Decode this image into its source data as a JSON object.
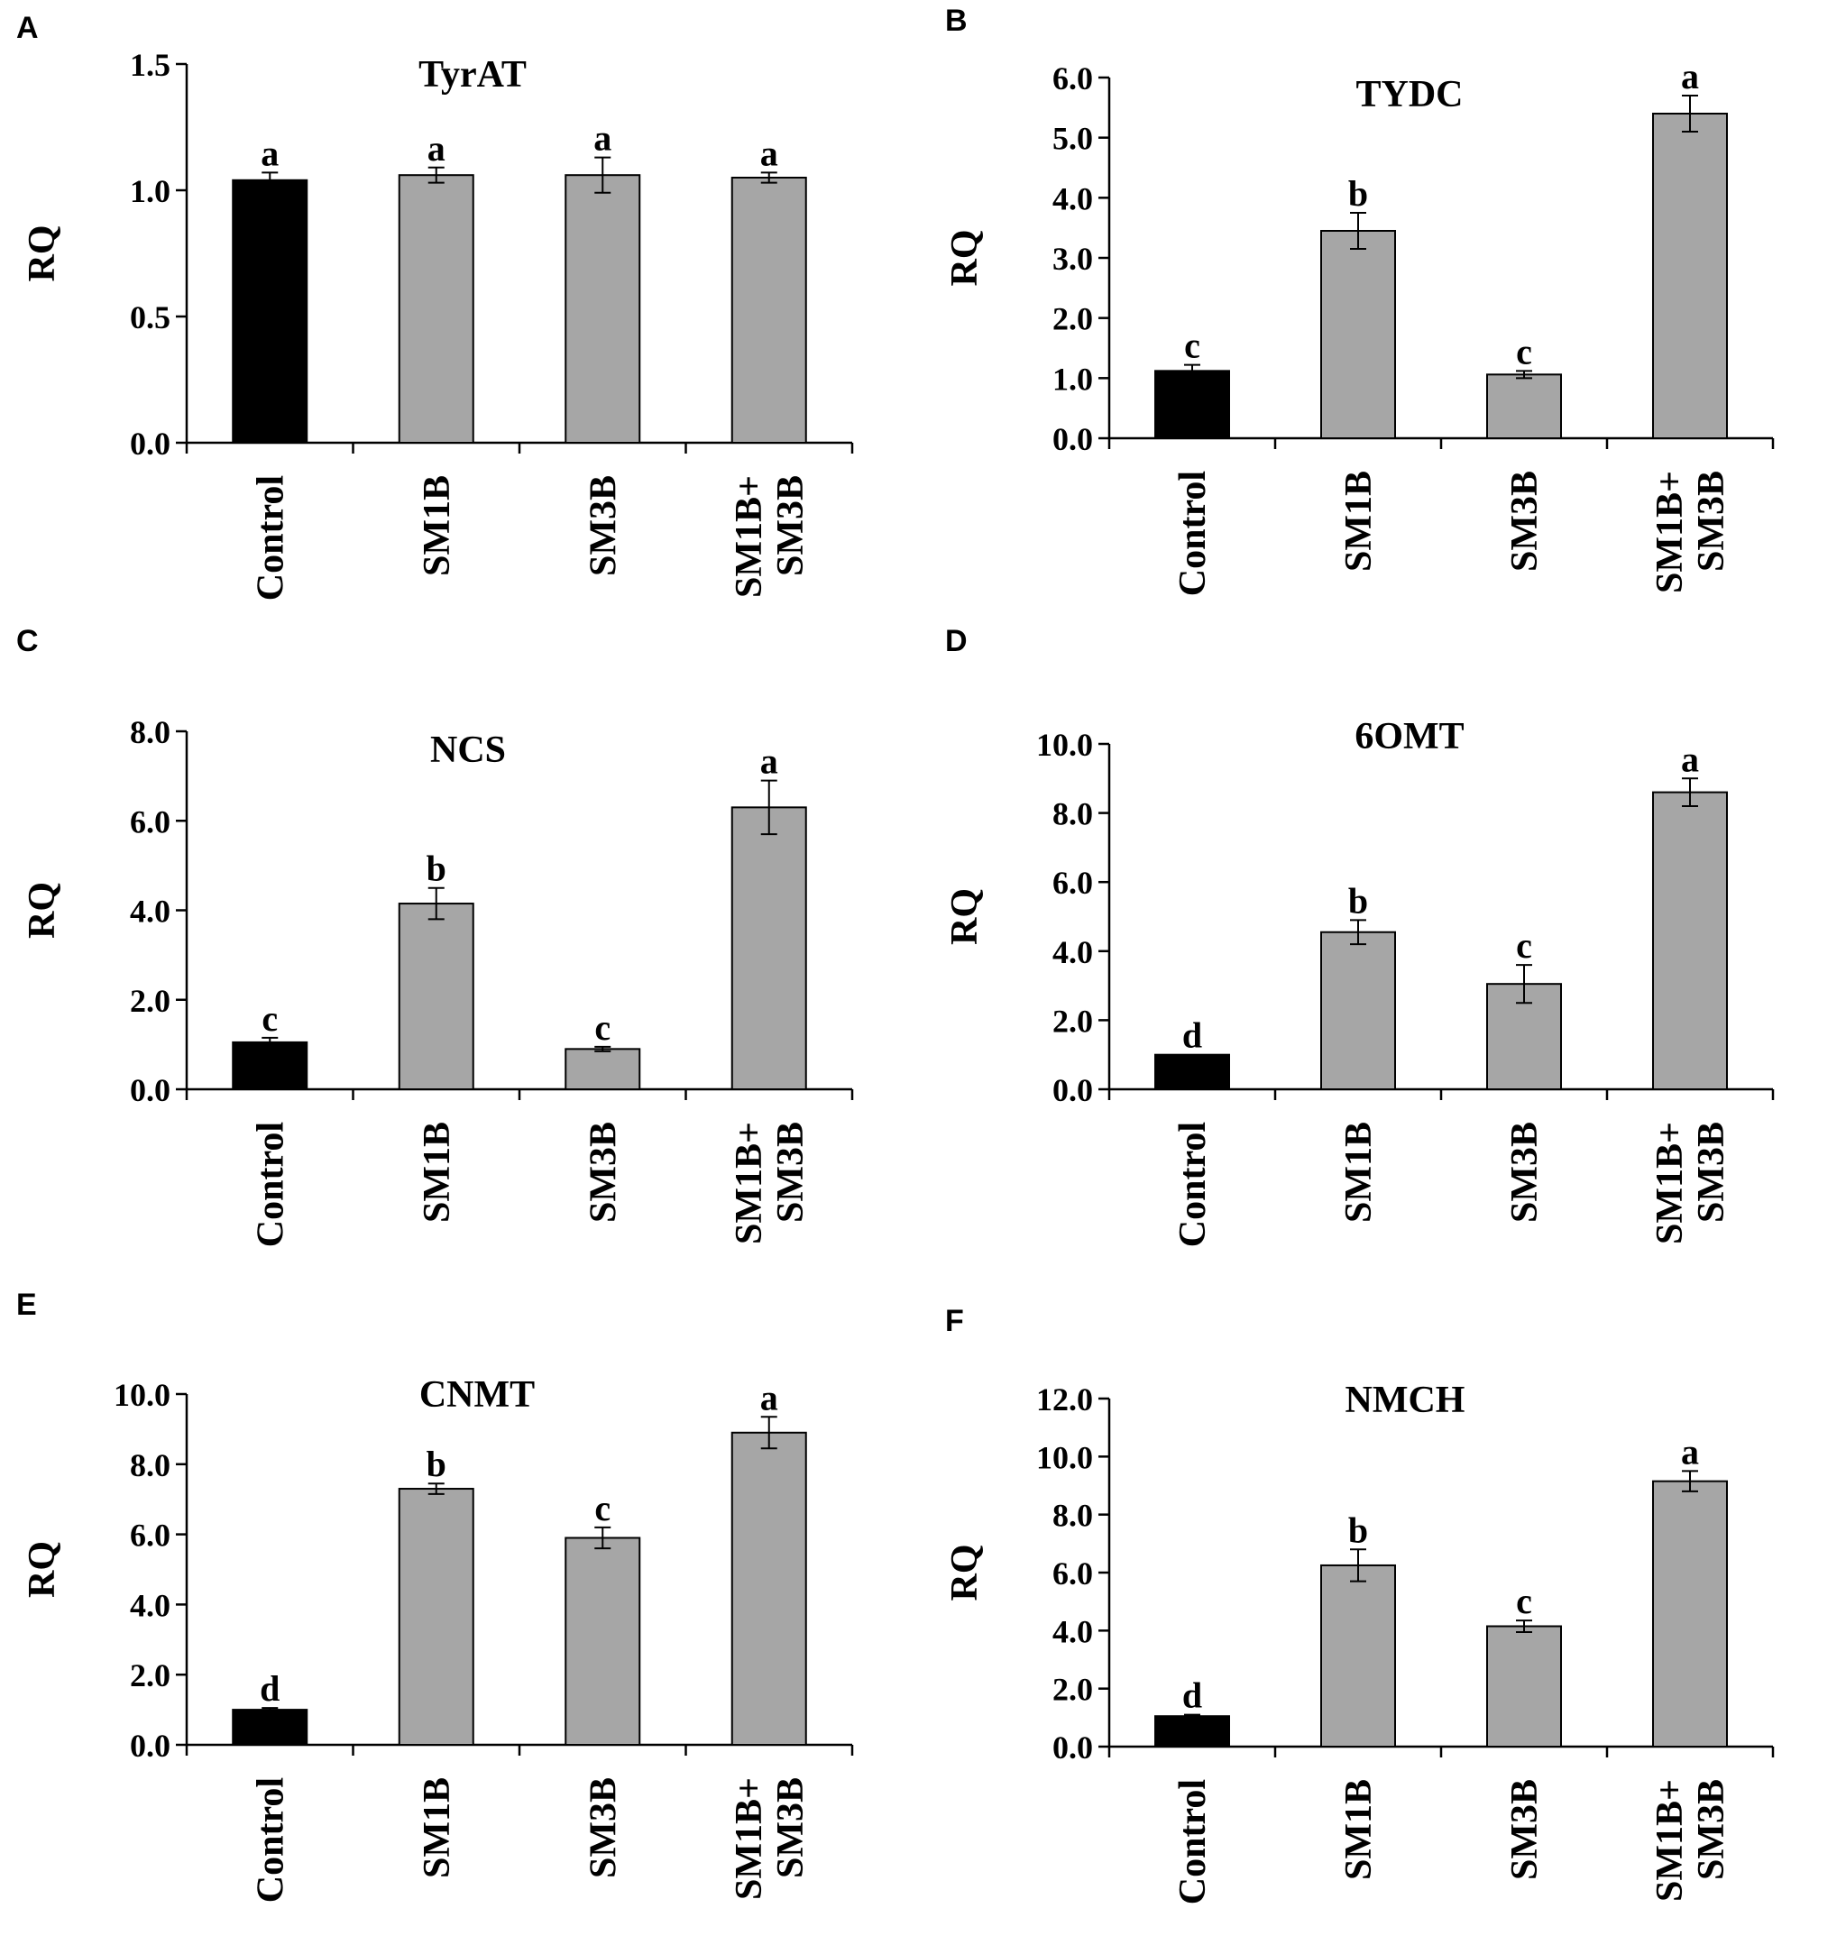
{
  "chart_data": [
    {
      "panel": "A",
      "type": "bar",
      "title": "TyrAT",
      "ylabel": "RQ",
      "categories": [
        "Control",
        "SM1B",
        "SM3B",
        "SM1B+ SM3B"
      ],
      "values": [
        1.04,
        1.06,
        1.06,
        1.05
      ],
      "errors": [
        0.03,
        0.03,
        0.07,
        0.02
      ],
      "letters": [
        "a",
        "a",
        "a",
        "a"
      ],
      "ylim": [
        0,
        1.5
      ],
      "yticks": [
        "0.0",
        "0.5",
        "1.0",
        "1.5"
      ],
      "colors": [
        "#000000",
        "#a6a6a6",
        "#a6a6a6",
        "#a6a6a6"
      ]
    },
    {
      "panel": "B",
      "type": "bar",
      "title": "TYDC",
      "ylabel": "RQ",
      "categories": [
        "Control",
        "SM1B",
        "SM3B",
        "SM1B+ SM3B"
      ],
      "values": [
        1.12,
        3.45,
        1.06,
        5.4
      ],
      "errors": [
        0.1,
        0.3,
        0.06,
        0.3
      ],
      "letters": [
        "c",
        "b",
        "c",
        "a"
      ],
      "ylim": [
        0,
        6
      ],
      "yticks": [
        "0.0",
        "1.0",
        "2.0",
        "3.0",
        "4.0",
        "5.0",
        "6.0"
      ],
      "colors": [
        "#000000",
        "#a6a6a6",
        "#a6a6a6",
        "#a6a6a6"
      ]
    },
    {
      "panel": "C",
      "type": "bar",
      "title": "NCS",
      "ylabel": "RQ",
      "categories": [
        "Control",
        "SM1B",
        "SM3B",
        "SM1B+ SM3B"
      ],
      "values": [
        1.05,
        4.15,
        0.9,
        6.3
      ],
      "errors": [
        0.1,
        0.35,
        0.05,
        0.6
      ],
      "letters": [
        "c",
        "b",
        "c",
        "a"
      ],
      "ylim": [
        0,
        8
      ],
      "yticks": [
        "0.0",
        "2.0",
        "4.0",
        "6.0",
        "8.0"
      ],
      "colors": [
        "#000000",
        "#a6a6a6",
        "#a6a6a6",
        "#a6a6a6"
      ]
    },
    {
      "panel": "D",
      "type": "bar",
      "title": "6OMT",
      "ylabel": "RQ",
      "categories": [
        "Control",
        "SM1B",
        "SM3B",
        "SM1B+ SM3B"
      ],
      "values": [
        1.0,
        4.55,
        3.05,
        8.6
      ],
      "errors": [
        0.0,
        0.35,
        0.55,
        0.4
      ],
      "letters": [
        "d",
        "b",
        "c",
        "a"
      ],
      "ylim": [
        0,
        10
      ],
      "yticks": [
        "0.0",
        "2.0",
        "4.0",
        "6.0",
        "8.0",
        "10.0"
      ],
      "colors": [
        "#000000",
        "#a6a6a6",
        "#a6a6a6",
        "#a6a6a6"
      ]
    },
    {
      "panel": "E",
      "type": "bar",
      "title": "CNMT",
      "ylabel": "RQ",
      "categories": [
        "Control",
        "SM1B",
        "SM3B",
        "SM1B+ SM3B"
      ],
      "values": [
        1.0,
        7.3,
        5.9,
        8.9
      ],
      "errors": [
        0.05,
        0.15,
        0.3,
        0.45
      ],
      "letters": [
        "d",
        "b",
        "c",
        "a"
      ],
      "ylim": [
        0,
        10
      ],
      "yticks": [
        "0.0",
        "2.0",
        "4.0",
        "6.0",
        "8.0",
        "10.0"
      ],
      "colors": [
        "#000000",
        "#a6a6a6",
        "#a6a6a6",
        "#a6a6a6"
      ]
    },
    {
      "panel": "F",
      "type": "bar",
      "title": "NMCH",
      "ylabel": "RQ",
      "categories": [
        "Control",
        "SM1B",
        "SM3B",
        "SM1B+ SM3B"
      ],
      "values": [
        1.05,
        6.25,
        4.15,
        9.15
      ],
      "errors": [
        0.05,
        0.55,
        0.2,
        0.35
      ],
      "letters": [
        "d",
        "b",
        "c",
        "a"
      ],
      "ylim": [
        0,
        12
      ],
      "yticks": [
        "0.0",
        "2.0",
        "4.0",
        "6.0",
        "8.0",
        "10.0",
        "12.0"
      ],
      "colors": [
        "#000000",
        "#a6a6a6",
        "#a6a6a6",
        "#a6a6a6"
      ]
    }
  ]
}
